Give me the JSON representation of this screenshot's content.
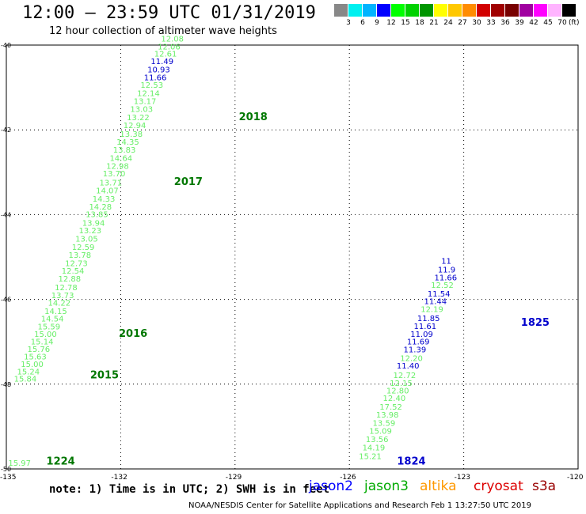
{
  "header": {
    "title": "12:00 – 23:59 UTC 01/31/2019",
    "subtitle": "12 hour collection of altimeter wave heights"
  },
  "legend": {
    "colors": [
      "#888888",
      "#00f0f0",
      "#00b4ff",
      "#0000ff",
      "#00ff00",
      "#00d200",
      "#009600",
      "#ffff00",
      "#ffc800",
      "#ff8c00",
      "#d20000",
      "#a00000",
      "#780000",
      "#a000a0",
      "#ff00ff",
      "#ffb4ff",
      "#000000"
    ],
    "labels": [
      "3",
      "6",
      "9",
      "12",
      "15",
      "18",
      "21",
      "24",
      "27",
      "30",
      "33",
      "36",
      "39",
      "42",
      "45",
      "70"
    ],
    "unit": "(ft)"
  },
  "axes": {
    "lat_labels": [
      "-40",
      "-42",
      "-44",
      "-46",
      "-48",
      "-50"
    ],
    "lon_labels": [
      "-135",
      "-132",
      "-129",
      "-126",
      "-123",
      "-120"
    ]
  },
  "tracks": [
    {
      "satellite": "jason3",
      "color": "#66ee66",
      "points": [
        {
          "lon": -134.95,
          "lat": -49.93,
          "v": "15.97"
        }
      ]
    },
    {
      "satellite": "jason3",
      "color": "#66ee66",
      "points": [
        {
          "lon": -134.8,
          "lat": -47.94,
          "v": "15.84"
        },
        {
          "lon": -134.72,
          "lat": -47.77,
          "v": "15.24"
        },
        {
          "lon": -134.62,
          "lat": -47.59,
          "v": "15.00"
        },
        {
          "lon": -134.54,
          "lat": -47.42,
          "v": "15.63"
        },
        {
          "lon": -134.45,
          "lat": -47.24,
          "v": "15.76"
        },
        {
          "lon": -134.36,
          "lat": -47.06,
          "v": "15.14"
        },
        {
          "lon": -134.27,
          "lat": -46.88,
          "v": "15.00"
        },
        {
          "lon": -134.18,
          "lat": -46.71,
          "v": "15.59"
        },
        {
          "lon": -134.09,
          "lat": -46.52,
          "v": "14.54"
        },
        {
          "lon": -134.0,
          "lat": -46.34,
          "v": "14.15"
        },
        {
          "lon": -133.91,
          "lat": -46.15,
          "v": "14.22"
        },
        {
          "lon": -133.82,
          "lat": -45.97,
          "v": "13.73"
        },
        {
          "lon": -133.73,
          "lat": -45.78,
          "v": "12.78"
        },
        {
          "lon": -133.64,
          "lat": -45.58,
          "v": "12.88"
        },
        {
          "lon": -133.55,
          "lat": -45.39,
          "v": "12.54"
        },
        {
          "lon": -133.46,
          "lat": -45.21,
          "v": "12.73"
        },
        {
          "lon": -133.37,
          "lat": -45.02,
          "v": "13.78"
        },
        {
          "lon": -133.28,
          "lat": -44.83,
          "v": "12.59"
        },
        {
          "lon": -133.19,
          "lat": -44.64,
          "v": "13.05"
        },
        {
          "lon": -133.1,
          "lat": -44.44,
          "v": "13.23"
        },
        {
          "lon": -133.01,
          "lat": -44.26,
          "v": "13.94"
        },
        {
          "lon": -132.92,
          "lat": -44.06,
          "v": "13.85"
        },
        {
          "lon": -132.83,
          "lat": -43.88,
          "v": "14.28"
        },
        {
          "lon": -132.74,
          "lat": -43.69,
          "v": "14.33"
        },
        {
          "lon": -132.65,
          "lat": -43.5,
          "v": "14.07"
        },
        {
          "lon": -132.56,
          "lat": -43.31,
          "v": "13.71"
        },
        {
          "lon": -132.47,
          "lat": -43.1,
          "v": "13.70"
        },
        {
          "lon": -132.38,
          "lat": -42.92,
          "v": "12.98"
        },
        {
          "lon": -132.29,
          "lat": -42.73,
          "v": "14.64"
        },
        {
          "lon": -132.2,
          "lat": -42.54,
          "v": "13.83"
        },
        {
          "lon": -132.11,
          "lat": -42.35,
          "v": "14.35"
        },
        {
          "lon": -132.02,
          "lat": -42.16,
          "v": "13.38"
        },
        {
          "lon": -131.93,
          "lat": -41.96,
          "v": "12.94"
        },
        {
          "lon": -131.84,
          "lat": -41.77,
          "v": "13.22"
        },
        {
          "lon": -131.75,
          "lat": -41.58,
          "v": "13.03"
        },
        {
          "lon": -131.66,
          "lat": -41.39,
          "v": "13.17"
        },
        {
          "lon": -131.57,
          "lat": -41.2,
          "v": "12.14"
        },
        {
          "lon": -131.48,
          "lat": -41.01,
          "v": "12.53"
        }
      ]
    },
    {
      "satellite": "jason2",
      "color": "#0000cc",
      "points": [
        {
          "lon": -131.39,
          "lat": -40.83,
          "v": "11.66"
        },
        {
          "lon": -131.3,
          "lat": -40.64,
          "v": "10.93"
        },
        {
          "lon": -131.21,
          "lat": -40.45,
          "v": "11.49"
        }
      ]
    },
    {
      "satellite": "jason3",
      "color": "#66ee66",
      "points": [
        {
          "lon": -131.12,
          "lat": -40.27,
          "v": "12.61"
        },
        {
          "lon": -131.03,
          "lat": -40.1,
          "v": "12.06"
        },
        {
          "lon": -130.94,
          "lat": -39.92,
          "v": "12.08"
        }
      ]
    },
    {
      "satellite": "jason3",
      "color": "#66ee66",
      "points": [
        {
          "lon": -125.75,
          "lat": -49.77,
          "v": "15.21"
        },
        {
          "lon": -125.66,
          "lat": -49.56,
          "v": "14.19"
        },
        {
          "lon": -125.57,
          "lat": -49.37,
          "v": "13.56"
        },
        {
          "lon": -125.48,
          "lat": -49.17,
          "v": "15.09"
        },
        {
          "lon": -125.39,
          "lat": -48.98,
          "v": "13.59"
        },
        {
          "lon": -125.3,
          "lat": -48.79,
          "v": "13.98"
        },
        {
          "lon": -125.21,
          "lat": -48.6,
          "v": "17.52"
        },
        {
          "lon": -125.12,
          "lat": -48.4,
          "v": "12.40"
        },
        {
          "lon": -125.03,
          "lat": -48.22,
          "v": "12.80"
        },
        {
          "lon": -124.94,
          "lat": -48.04,
          "v": "12.15"
        },
        {
          "lon": -124.85,
          "lat": -47.85,
          "v": "12.72"
        }
      ]
    },
    {
      "satellite": "jason2",
      "color": "#0000cc",
      "points": [
        {
          "lon": -124.76,
          "lat": -47.63,
          "v": "11.40"
        }
      ]
    },
    {
      "satellite": "jason3",
      "color": "#66ee66",
      "points": [
        {
          "lon": -124.67,
          "lat": -47.45,
          "v": "12.20"
        }
      ]
    },
    {
      "satellite": "jason2",
      "color": "#0000cc",
      "points": [
        {
          "lon": -124.58,
          "lat": -47.25,
          "v": "11.39"
        },
        {
          "lon": -124.49,
          "lat": -47.06,
          "v": "11.69"
        },
        {
          "lon": -124.4,
          "lat": -46.88,
          "v": "11.09"
        },
        {
          "lon": -124.31,
          "lat": -46.7,
          "v": "11.61"
        },
        {
          "lon": -124.22,
          "lat": -46.51,
          "v": "11.85"
        }
      ]
    },
    {
      "satellite": "jason3",
      "color": "#66ee66",
      "points": [
        {
          "lon": -124.13,
          "lat": -46.3,
          "v": "12.19"
        }
      ]
    },
    {
      "satellite": "jason2",
      "color": "#0000cc",
      "points": [
        {
          "lon": -124.04,
          "lat": -46.11,
          "v": "11.44"
        },
        {
          "lon": -123.95,
          "lat": -45.93,
          "v": "11.54"
        }
      ]
    },
    {
      "satellite": "jason3",
      "color": "#66ee66",
      "points": [
        {
          "lon": -123.86,
          "lat": -45.73,
          "v": "12.52"
        }
      ]
    },
    {
      "satellite": "jason2",
      "color": "#0000cc",
      "points": [
        {
          "lon": -123.77,
          "lat": -45.55,
          "v": "11.66"
        },
        {
          "lon": -123.68,
          "lat": -45.36,
          "v": "11.9"
        },
        {
          "lon": -123.59,
          "lat": -45.16,
          "v": "11"
        }
      ]
    }
  ],
  "time_labels": [
    {
      "text": "2018",
      "lon": -128.9,
      "lat": -41.77,
      "color": "#007700"
    },
    {
      "text": "2017",
      "lon": -130.6,
      "lat": -43.3,
      "color": "#007700"
    },
    {
      "text": "2016",
      "lon": -132.05,
      "lat": -46.88,
      "color": "#007700"
    },
    {
      "text": "2015",
      "lon": -132.8,
      "lat": -47.86,
      "color": "#007700"
    },
    {
      "text": "1224",
      "lon": -133.95,
      "lat": -49.9,
      "color": "#007700"
    },
    {
      "text": "1824",
      "lon": -124.75,
      "lat": -49.9,
      "color": "#0000cc"
    },
    {
      "text": "1825",
      "lon": -121.5,
      "lat": -46.62,
      "color": "#0000cc"
    }
  ],
  "note": "note: 1) Time is in UTC; 2) SWH is in feet",
  "satellites": [
    {
      "name": "jason2",
      "color": "#0000ff"
    },
    {
      "name": "jason3",
      "color": "#00aa00"
    },
    {
      "name": "altika",
      "color": "#ff9900"
    },
    {
      "name": "cryosat",
      "color": "#dd0000"
    },
    {
      "name": "s3a",
      "color": "#990000"
    }
  ],
  "footer": "NOAA/NESDIS Center for Satellite Applications and Research    Feb  1 13:27:50 UTC 2019"
}
